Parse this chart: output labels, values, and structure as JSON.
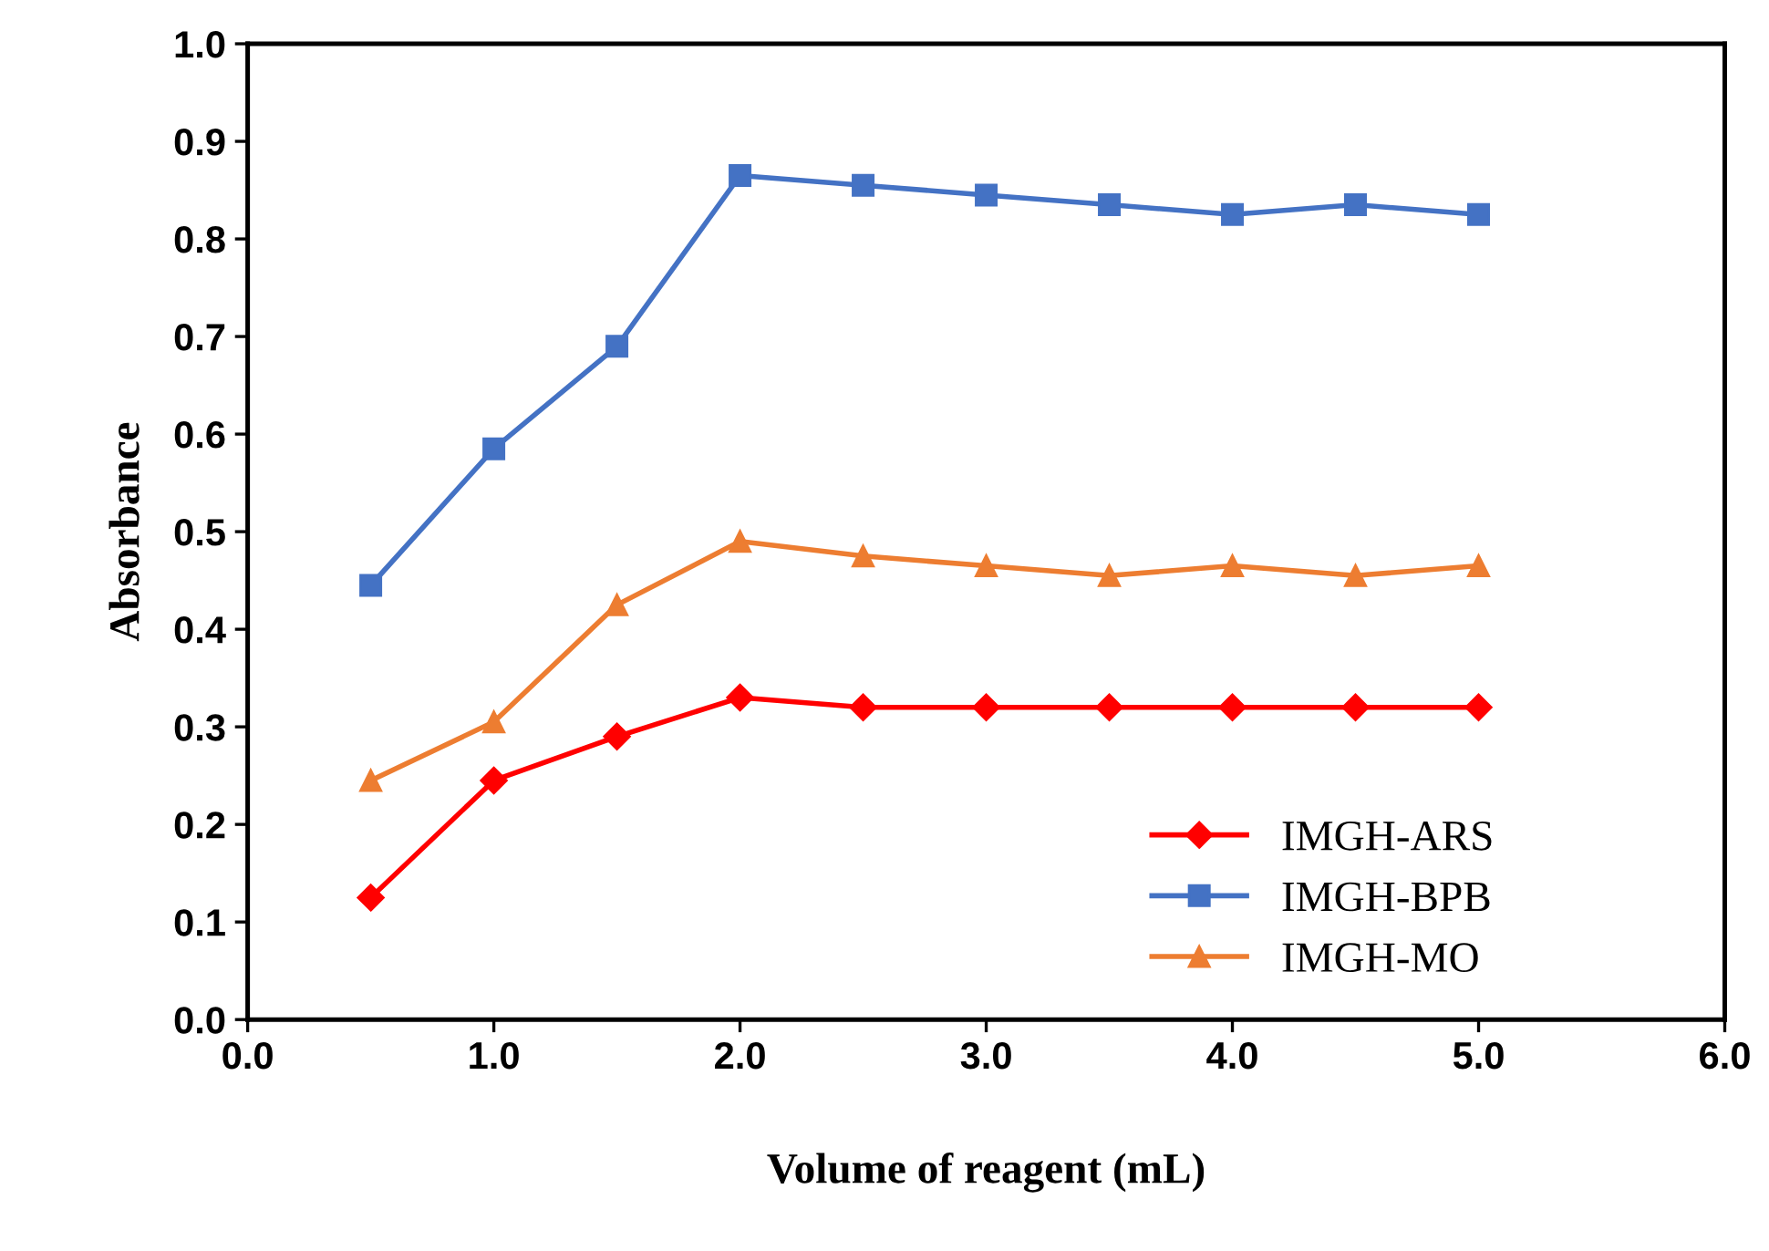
{
  "chart_data": {
    "type": "line",
    "xlabel": "Volume of reagent (mL)",
    "ylabel": "Absorbance",
    "x": [
      0.5,
      1.0,
      1.5,
      2.0,
      2.5,
      3.0,
      3.5,
      4.0,
      4.5,
      5.0
    ],
    "series": [
      {
        "name": "IMGH-ARS",
        "color": "#ff0000",
        "marker": "diamond",
        "values": [
          0.125,
          0.245,
          0.29,
          0.33,
          0.32,
          0.32,
          0.32,
          0.32,
          0.32,
          0.32
        ]
      },
      {
        "name": "IMGH-BPB",
        "color": "#4472c4",
        "marker": "square",
        "values": [
          0.445,
          0.585,
          0.69,
          0.865,
          0.855,
          0.845,
          0.835,
          0.825,
          0.835,
          0.825
        ]
      },
      {
        "name": "IMGH-MO",
        "color": "#ed7d31",
        "marker": "triangle",
        "values": [
          0.245,
          0.305,
          0.425,
          0.49,
          0.475,
          0.465,
          0.455,
          0.465,
          0.455,
          0.465
        ]
      }
    ],
    "xlim": [
      0,
      6
    ],
    "xticks": [
      {
        "value": 0,
        "label": "0.0"
      },
      {
        "value": 1,
        "label": "1.0"
      },
      {
        "value": 2,
        "label": "2.0"
      },
      {
        "value": 3,
        "label": "3.0"
      },
      {
        "value": 4,
        "label": "4.0"
      },
      {
        "value": 5,
        "label": "5.0"
      },
      {
        "value": 6,
        "label": "6.0"
      }
    ],
    "ylim": [
      0,
      1
    ],
    "yticks": [
      {
        "value": 0,
        "label": "0.0"
      },
      {
        "value": 0.1,
        "label": "0.1"
      },
      {
        "value": 0.2,
        "label": "0.2"
      },
      {
        "value": 0.3,
        "label": "0.3"
      },
      {
        "value": 0.4,
        "label": "0.4"
      },
      {
        "value": 0.5,
        "label": "0.5"
      },
      {
        "value": 0.6,
        "label": "0.6"
      },
      {
        "value": 0.7,
        "label": "0.7"
      },
      {
        "value": 0.8,
        "label": "0.8"
      },
      {
        "value": 0.9,
        "label": "0.9"
      },
      {
        "value": 1.0,
        "label": "1.0"
      }
    ],
    "grid": false,
    "legend": "bottom right",
    "line_style": "solid"
  }
}
